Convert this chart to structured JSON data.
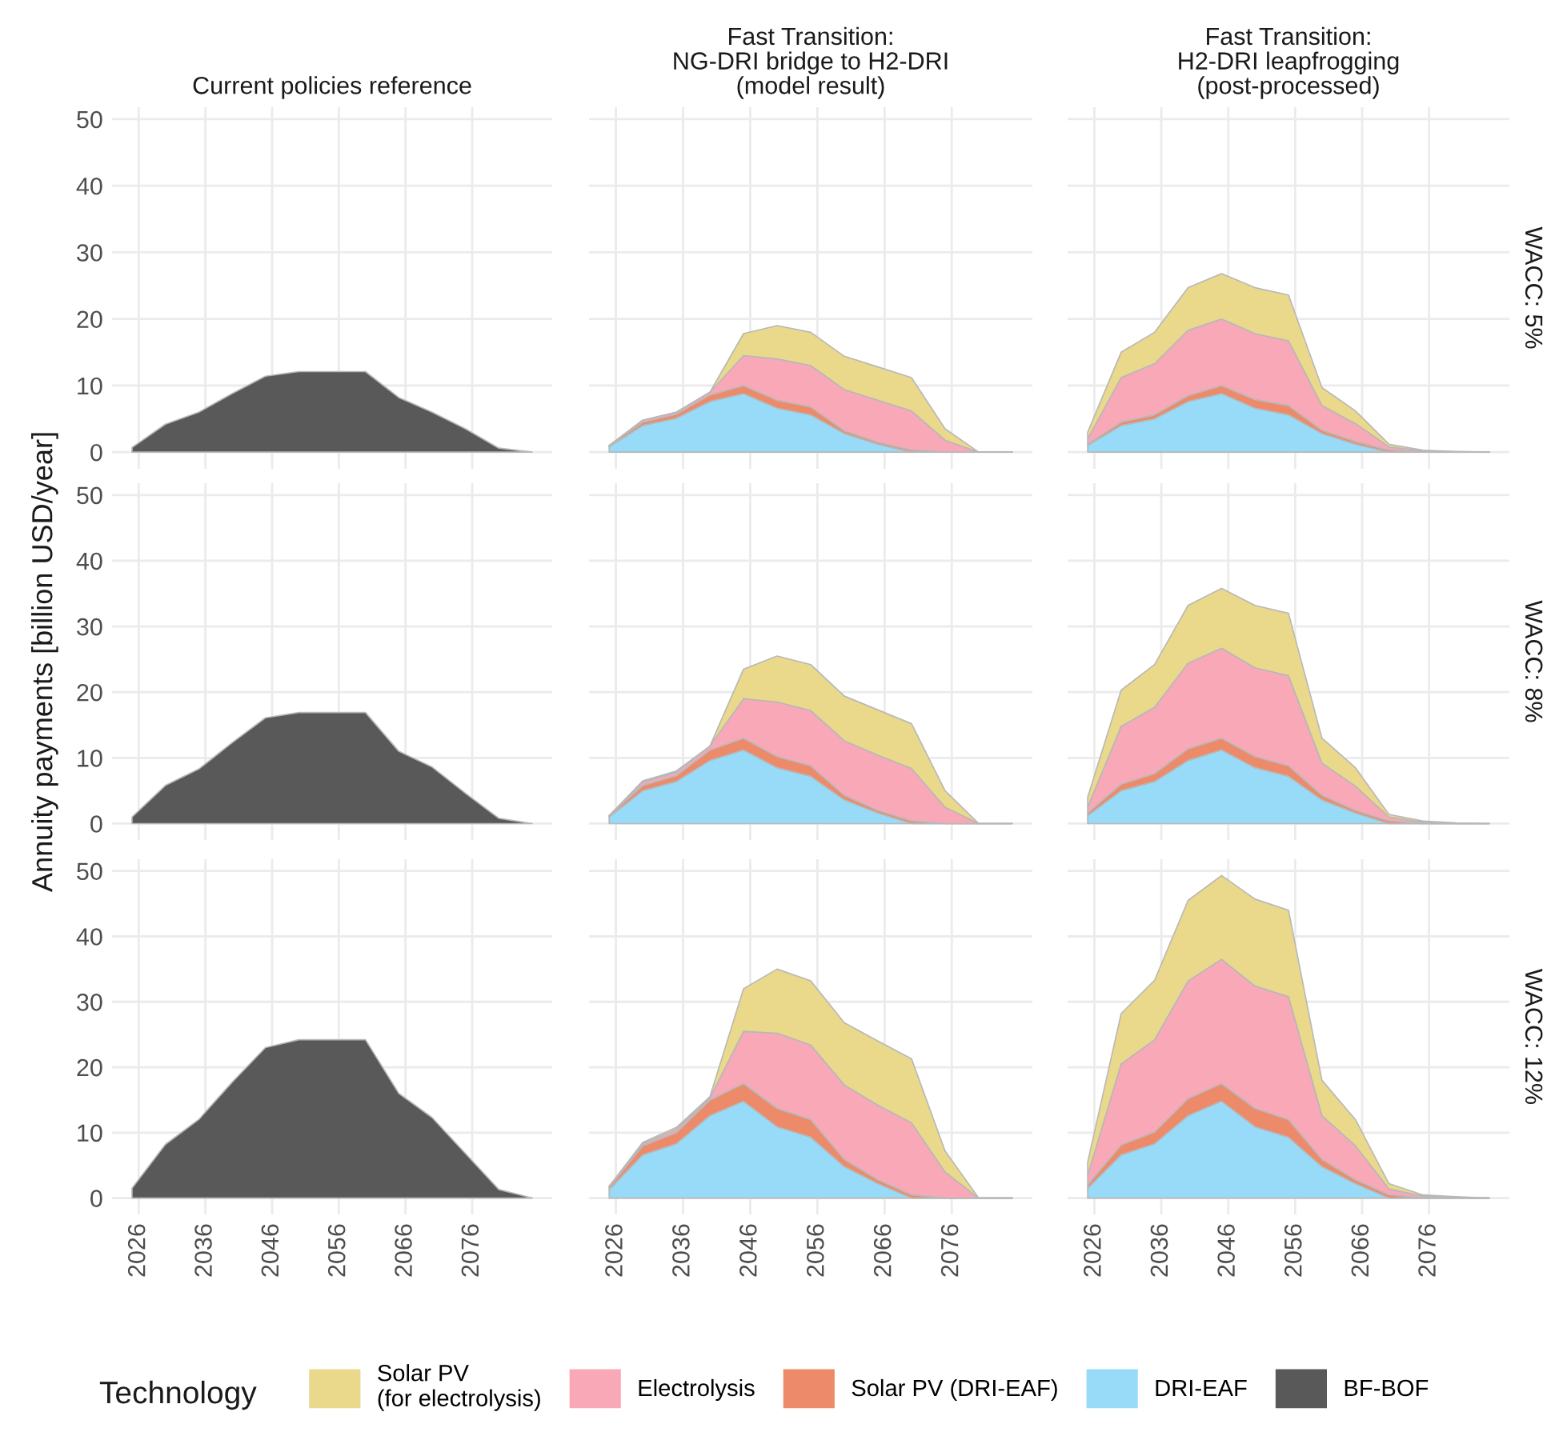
{
  "chart_data": [
    {
      "type": "area",
      "stacked": true,
      "title": "Current policies reference",
      "legend": "bottom",
      "legend_title": "Technology",
      "grid": true,
      "tick_labels": "y",
      "xlim": [
        2022,
        2088
      ],
      "xticks": [
        2026,
        2036,
        2046,
        2056,
        2066,
        2076
      ],
      "ylim": [
        -2.5,
        51.8
      ],
      "yticks": [
        0,
        10,
        20,
        30,
        40,
        50
      ],
      "x": [
        2025,
        2030,
        2035,
        2040,
        2045,
        2050,
        2055,
        2060,
        2065,
        2070,
        2075,
        2080,
        2085
      ],
      "series": [
        {
          "name": "BF-BOF",
          "color": "#595959",
          "values": [
            0.7,
            4.2,
            6,
            8.8,
            11.4,
            12.1,
            12.1,
            12.1,
            8.2,
            6,
            3.5,
            0.6,
            0
          ]
        }
      ]
    },
    {
      "type": "area",
      "stacked": true,
      "title": "Fast Transition:\nNG-DRI bridge to H2-DRI\n(model result)",
      "legend": "bottom",
      "grid": true,
      "tick_labels": false,
      "xlim": [
        2022,
        2088
      ],
      "xticks": [
        2026,
        2036,
        2046,
        2056,
        2066,
        2076
      ],
      "ylim": [
        -2.5,
        51.8
      ],
      "yticks": [
        0,
        10,
        20,
        30,
        40,
        50
      ],
      "x": [
        2025,
        2030,
        2035,
        2040,
        2045,
        2050,
        2055,
        2060,
        2065,
        2070,
        2075,
        2080,
        2085
      ],
      "series": [
        {
          "name": "DRI-EAF",
          "color": "#97dbf9",
          "values": [
            0.8,
            4,
            5.1,
            7.6,
            8.8,
            6.6,
            5.6,
            2.8,
            1.2,
            0,
            0,
            0,
            0
          ]
        },
        {
          "name": "Solar PV (DRI-EAF)",
          "color": "#ec8a6a",
          "values": [
            0.2,
            0.5,
            0.6,
            1.0,
            1.2,
            1.2,
            1.2,
            0.4,
            0.3,
            0.3,
            0,
            0,
            0
          ]
        },
        {
          "name": "Electrolysis",
          "color": "#f9a8b8",
          "values": [
            0,
            0.3,
            0.3,
            0.4,
            4.5,
            6.2,
            6.2,
            6.2,
            6.3,
            5.9,
            1.8,
            0,
            0
          ]
        },
        {
          "name": "Solar PV\n(for electrolysis)",
          "color": "#ead98b",
          "values": [
            0,
            0,
            0,
            0,
            3.3,
            5,
            5,
            5,
            5,
            5,
            1.7,
            0,
            0
          ]
        }
      ]
    },
    {
      "type": "area",
      "stacked": true,
      "title": "Fast Transition:\nH2-DRI leapfrogging\n(post-processed)",
      "annotations": [
        "WACC: 5%"
      ],
      "grid": true,
      "tick_labels": false,
      "xlim": [
        2022,
        2088
      ],
      "xticks": [
        2026,
        2036,
        2046,
        2056,
        2066,
        2076
      ],
      "ylim": [
        -2.5,
        51.8
      ],
      "yticks": [
        0,
        10,
        20,
        30,
        40,
        50
      ],
      "x": [
        2025,
        2030,
        2035,
        2040,
        2045,
        2050,
        2055,
        2060,
        2065,
        2070,
        2075,
        2080,
        2085
      ],
      "series": [
        {
          "name": "DRI-EAF",
          "color": "#97dbf9",
          "values": [
            1,
            4,
            5,
            7.6,
            8.8,
            6.6,
            5.6,
            2.8,
            1.2,
            0,
            0,
            0,
            0
          ]
        },
        {
          "name": "Solar PV (DRI-EAF)",
          "color": "#ec8a6a",
          "values": [
            0.2,
            0.5,
            0.6,
            0.9,
            1.2,
            1.3,
            1.4,
            0.5,
            0.4,
            0.3,
            0,
            0,
            0
          ]
        },
        {
          "name": "Electrolysis",
          "color": "#f9a8b8",
          "values": [
            0.8,
            6.7,
            7.7,
            9.8,
            10,
            9.9,
            9.7,
            3.7,
            2.7,
            0.5,
            0.2,
            0,
            0
          ]
        },
        {
          "name": "Solar PV\n(for electrolysis)",
          "color": "#ead98b",
          "values": [
            1,
            3.8,
            4.7,
            6.4,
            6.8,
            6.9,
            6.9,
            2.7,
            1.9,
            0.4,
            0.1,
            0.1,
            0
          ]
        }
      ]
    },
    {
      "type": "area",
      "stacked": true,
      "ylabel": "Annuity payments [billion USD/year]",
      "grid": true,
      "tick_labels": "y",
      "xlim": [
        2022,
        2088
      ],
      "xticks": [
        2026,
        2036,
        2046,
        2056,
        2066,
        2076
      ],
      "ylim": [
        -2.5,
        51.8
      ],
      "yticks": [
        0,
        10,
        20,
        30,
        40,
        50
      ],
      "x": [
        2025,
        2030,
        2035,
        2040,
        2045,
        2050,
        2055,
        2060,
        2065,
        2070,
        2075,
        2080,
        2085
      ],
      "series": [
        {
          "name": "BF-BOF",
          "color": "#595959",
          "values": [
            1,
            5.8,
            8.3,
            12.3,
            16.1,
            16.9,
            16.9,
            16.9,
            11,
            8.6,
            4.6,
            0.8,
            0
          ]
        }
      ]
    },
    {
      "type": "area",
      "stacked": true,
      "grid": true,
      "tick_labels": false,
      "xlim": [
        2022,
        2088
      ],
      "xticks": [
        2026,
        2036,
        2046,
        2056,
        2066,
        2076
      ],
      "ylim": [
        -2.5,
        51.8
      ],
      "yticks": [
        0,
        10,
        20,
        30,
        40,
        50
      ],
      "x": [
        2025,
        2030,
        2035,
        2040,
        2045,
        2050,
        2055,
        2060,
        2065,
        2070,
        2075,
        2080,
        2085
      ],
      "series": [
        {
          "name": "DRI-EAF",
          "color": "#97dbf9",
          "values": [
            1,
            5,
            6.4,
            9.6,
            11.2,
            8.5,
            7.2,
            3.6,
            1.6,
            0,
            0,
            0,
            0
          ]
        },
        {
          "name": "Solar PV (DRI-EAF)",
          "color": "#ec8a6a",
          "values": [
            0.2,
            0.8,
            0.9,
            1.6,
            1.8,
            1.7,
            1.6,
            0.7,
            0.4,
            0.4,
            0,
            0,
            0
          ]
        },
        {
          "name": "Electrolysis",
          "color": "#f9a8b8",
          "values": [
            0,
            0.5,
            0.5,
            0.6,
            6,
            8.3,
            8.4,
            8.3,
            8.4,
            8,
            2.5,
            0,
            0
          ]
        },
        {
          "name": "Solar PV\n(for electrolysis)",
          "color": "#ead98b",
          "values": [
            0,
            0.2,
            0.2,
            0,
            4.5,
            7,
            7,
            6.8,
            6.9,
            6.8,
            2.5,
            0,
            0
          ]
        }
      ]
    },
    {
      "type": "area",
      "stacked": true,
      "annotations": [
        "WACC: 8%"
      ],
      "grid": true,
      "tick_labels": false,
      "xlim": [
        2022,
        2088
      ],
      "xticks": [
        2026,
        2036,
        2046,
        2056,
        2066,
        2076
      ],
      "ylim": [
        -2.5,
        51.8
      ],
      "yticks": [
        0,
        10,
        20,
        30,
        40,
        50
      ],
      "x": [
        2025,
        2030,
        2035,
        2040,
        2045,
        2050,
        2055,
        2060,
        2065,
        2070,
        2075,
        2080,
        2085
      ],
      "series": [
        {
          "name": "DRI-EAF",
          "color": "#97dbf9",
          "values": [
            1.2,
            5,
            6.4,
            9.6,
            11.2,
            8.5,
            7.2,
            3.6,
            1.6,
            0,
            0,
            0,
            0
          ]
        },
        {
          "name": "Solar PV (DRI-EAF)",
          "color": "#ec8a6a",
          "values": [
            0.4,
            1,
            1.2,
            1.8,
            1.8,
            1.7,
            1.6,
            0.7,
            0.4,
            0.4,
            0,
            0,
            0
          ]
        },
        {
          "name": "Electrolysis",
          "color": "#f9a8b8",
          "values": [
            0.9,
            8.8,
            10.1,
            13,
            13.7,
            13.5,
            13.7,
            4.9,
            3.7,
            0.6,
            0.2,
            0,
            0
          ]
        },
        {
          "name": "Solar PV\n(for electrolysis)",
          "color": "#ead98b",
          "values": [
            1.5,
            5.5,
            6.5,
            8.8,
            9.1,
            9.5,
            9.5,
            3.8,
            2.8,
            0.4,
            0.2,
            0.1,
            0
          ]
        }
      ]
    },
    {
      "type": "area",
      "stacked": true,
      "grid": true,
      "xlim": [
        2022,
        2088
      ],
      "xticks": [
        2026,
        2036,
        2046,
        2056,
        2066,
        2076
      ],
      "ylim": [
        -2.5,
        51.8
      ],
      "yticks": [
        0,
        10,
        20,
        30,
        40,
        50
      ],
      "x": [
        2025,
        2030,
        2035,
        2040,
        2045,
        2050,
        2055,
        2060,
        2065,
        2070,
        2075,
        2080,
        2085
      ],
      "series": [
        {
          "name": "BF-BOF",
          "color": "#595959",
          "values": [
            1.5,
            8.2,
            12,
            17.7,
            23,
            24.2,
            24.2,
            24.2,
            16,
            12.3,
            6.8,
            1.3,
            0
          ]
        }
      ]
    },
    {
      "type": "area",
      "stacked": true,
      "grid": true,
      "tick_labels": "x",
      "xlim": [
        2022,
        2088
      ],
      "xticks": [
        2026,
        2036,
        2046,
        2056,
        2066,
        2076
      ],
      "ylim": [
        -2.5,
        51.8
      ],
      "yticks": [
        0,
        10,
        20,
        30,
        40,
        50
      ],
      "x": [
        2025,
        2030,
        2035,
        2040,
        2045,
        2050,
        2055,
        2060,
        2065,
        2070,
        2075,
        2080,
        2085
      ],
      "series": [
        {
          "name": "DRI-EAF",
          "color": "#97dbf9",
          "values": [
            1.3,
            6.6,
            8.3,
            12.6,
            14.8,
            10.9,
            9.3,
            4.8,
            2.2,
            0,
            0,
            0,
            0
          ]
        },
        {
          "name": "Solar PV (DRI-EAF)",
          "color": "#ec8a6a",
          "values": [
            0.3,
            1.4,
            1.7,
            2.4,
            2.7,
            2.8,
            2.7,
            1.1,
            0.6,
            0.5,
            0,
            0,
            0
          ]
        },
        {
          "name": "Electrolysis",
          "color": "#f9a8b8",
          "values": [
            0.2,
            0.3,
            0.5,
            0.3,
            8,
            11.5,
            11.4,
            11.4,
            11.4,
            11,
            4,
            0,
            0
          ]
        },
        {
          "name": "Solar PV\n(for electrolysis)",
          "color": "#ead98b",
          "values": [
            0,
            0.2,
            0.3,
            0.2,
            6.5,
            9.8,
            9.8,
            9.5,
            9.8,
            9.8,
            3.2,
            0,
            0
          ]
        }
      ]
    },
    {
      "type": "area",
      "stacked": true,
      "annotations": [
        "WACC: 12%"
      ],
      "grid": true,
      "tick_labels": "x",
      "xlim": [
        2022,
        2088
      ],
      "xticks": [
        2026,
        2036,
        2046,
        2056,
        2066,
        2076
      ],
      "ylim": [
        -2.5,
        51.8
      ],
      "yticks": [
        0,
        10,
        20,
        30,
        40,
        50
      ],
      "x": [
        2025,
        2030,
        2035,
        2040,
        2045,
        2050,
        2055,
        2060,
        2065,
        2070,
        2075,
        2080,
        2085
      ],
      "series": [
        {
          "name": "DRI-EAF",
          "color": "#97dbf9",
          "values": [
            1.5,
            6.6,
            8.3,
            12.6,
            14.8,
            10.9,
            9.3,
            4.8,
            2.2,
            0,
            0,
            0,
            0
          ]
        },
        {
          "name": "Solar PV (DRI-EAF)",
          "color": "#ec8a6a",
          "values": [
            0.5,
            1.5,
            1.8,
            2.6,
            2.7,
            2.8,
            2.7,
            1.1,
            0.6,
            0.5,
            0,
            0,
            0
          ]
        },
        {
          "name": "Electrolysis",
          "color": "#f9a8b8",
          "values": [
            1.5,
            12.4,
            14.1,
            18,
            19,
            18.7,
            18.8,
            6.7,
            5.2,
            0.9,
            0.3,
            0.1,
            0
          ]
        },
        {
          "name": "Solar PV\n(for electrolysis)",
          "color": "#ead98b",
          "values": [
            2,
            7.7,
            9.1,
            12.3,
            12.8,
            13.3,
            13.2,
            5.4,
            4,
            0.8,
            0.2,
            0.1,
            0
          ]
        }
      ]
    }
  ]
}
